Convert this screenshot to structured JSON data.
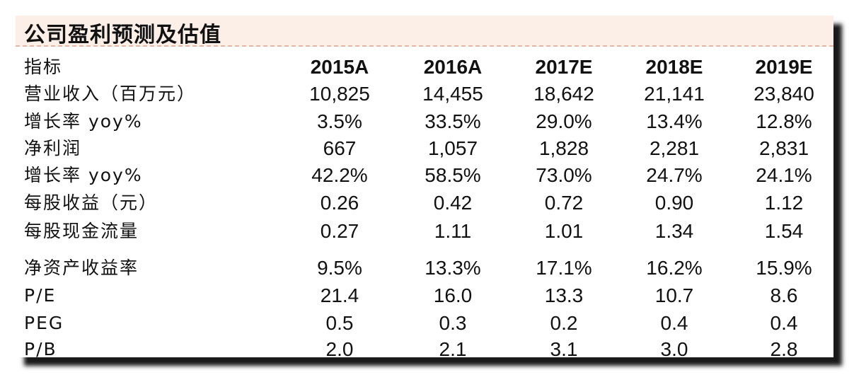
{
  "header": {
    "title": "公司盈利预测及估值"
  },
  "table": {
    "columns": [
      "指标",
      "2015A",
      "2016A",
      "2017E",
      "2018E",
      "2019E"
    ],
    "rows": [
      [
        "营业收入（百万元）",
        "10,825",
        "14,455",
        "18,642",
        "21,141",
        "23,840"
      ],
      [
        "增长率 yoy%",
        "3.5%",
        "33.5%",
        "29.0%",
        "13.4%",
        "12.8%"
      ],
      [
        "净利润",
        "667",
        "1,057",
        "1,828",
        "2,281",
        "2,831"
      ],
      [
        "增长率 yoy%",
        "42.2%",
        "58.5%",
        "73.0%",
        "24.7%",
        "24.1%"
      ],
      [
        "每股收益（元）",
        "0.26",
        "0.42",
        "0.72",
        "0.90",
        "1.12"
      ],
      [
        "每股现金流量",
        "0.27",
        "1.11",
        "1.01",
        "1.34",
        "1.54"
      ],
      [
        "净资产收益率",
        "9.5%",
        "13.3%",
        "17.1%",
        "16.2%",
        "15.9%"
      ],
      [
        "P/E",
        "21.4",
        "16.0",
        "13.3",
        "10.7",
        "8.6"
      ],
      [
        "PEG",
        "0.5",
        "0.3",
        "0.2",
        "0.4",
        "0.4"
      ],
      [
        "P/B",
        "2.0",
        "2.1",
        "3.1",
        "3.0",
        "2.8"
      ]
    ]
  }
}
